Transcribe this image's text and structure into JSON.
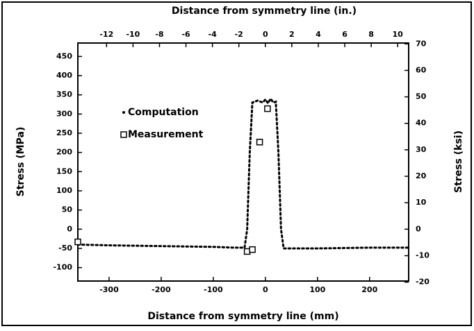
{
  "chart_data": {
    "type": "line",
    "xlabel": "Distance from symmetry line (mm)",
    "x2label": "Distance from symmetry line (in.)",
    "ylabel": "Stress (MPa)",
    "y2label": "Stress (ksi)",
    "xlim": [
      -360,
      275
    ],
    "xticks": [
      -300,
      -200,
      -100,
      0,
      100,
      200
    ],
    "x2lim": [
      -14.17,
      10.83
    ],
    "x2ticks": [
      -12,
      -10,
      -8,
      -6,
      -4,
      -2,
      0,
      2,
      4,
      6,
      8,
      10
    ],
    "ylim": [
      -135,
      485
    ],
    "yticks": [
      -100,
      -50,
      0,
      50,
      100,
      150,
      200,
      250,
      300,
      350,
      400,
      450
    ],
    "y2lim": [
      -19.58,
      70.34
    ],
    "y2ticks": [
      -20,
      -10,
      0,
      10,
      20,
      30,
      40,
      50,
      60,
      70
    ],
    "series": [
      {
        "name": "Computation",
        "color": "#000000",
        "marker": "line",
        "x": [
          -360,
          -300,
          -200,
          -100,
          -60,
          -40,
          -35,
          -30,
          -25,
          -15,
          -5,
          0,
          5,
          10,
          15,
          20,
          25,
          30,
          35,
          60,
          100,
          150,
          200,
          275
        ],
        "values": [
          -40,
          -42,
          -44,
          -46,
          -48,
          -48,
          0,
          200,
          330,
          335,
          330,
          338,
          328,
          340,
          330,
          332,
          200,
          0,
          -50,
          -50,
          -50,
          -49,
          -48,
          -48
        ]
      },
      {
        "name": "Measurement",
        "color": "#000000",
        "marker": "square",
        "x": [
          -360,
          -35,
          -25,
          -11,
          4
        ],
        "values": [
          -33,
          -58,
          -53,
          227,
          314
        ]
      }
    ]
  }
}
